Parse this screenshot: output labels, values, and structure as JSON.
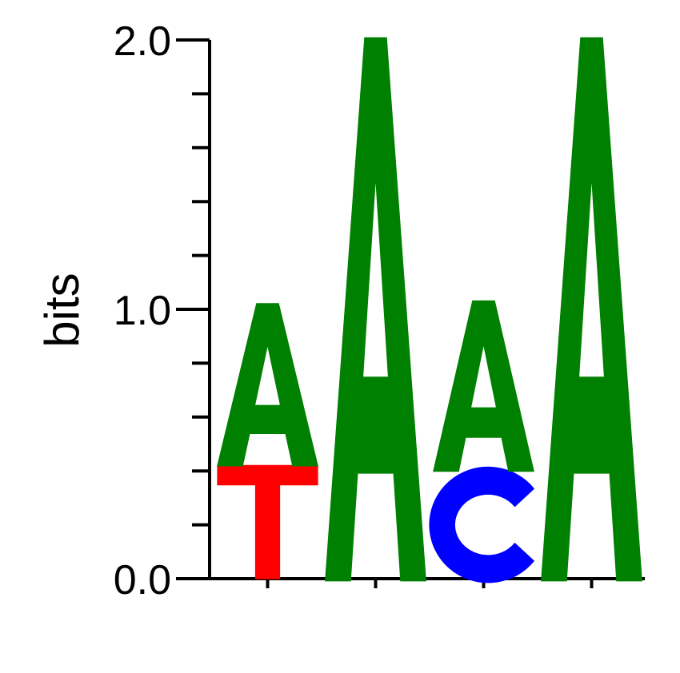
{
  "chart_data": {
    "type": "sequence-logo",
    "ylabel": "bits",
    "ylim": [
      0,
      2
    ],
    "y_ticks": [
      {
        "value": 0,
        "label": "0.0"
      },
      {
        "value": 1,
        "label": "1.0"
      },
      {
        "value": 2,
        "label": "2.0"
      }
    ],
    "y_minor_step": 0.2,
    "x": [
      1,
      2,
      3,
      4
    ],
    "colors": {
      "A": "#008000",
      "C": "#0000ff",
      "G": "#ffa500",
      "T": "#ff0000"
    },
    "positions": [
      {
        "position": 1,
        "letters": [
          {
            "base": "T",
            "bits": 0.42
          },
          {
            "base": "A",
            "bits": 0.6
          }
        ]
      },
      {
        "position": 2,
        "letters": [
          {
            "base": "A",
            "bits": 2.0
          }
        ]
      },
      {
        "position": 3,
        "letters": [
          {
            "base": "C",
            "bits": 0.4
          },
          {
            "base": "A",
            "bits": 0.63
          }
        ]
      },
      {
        "position": 4,
        "letters": [
          {
            "base": "A",
            "bits": 2.0
          }
        ]
      }
    ]
  }
}
